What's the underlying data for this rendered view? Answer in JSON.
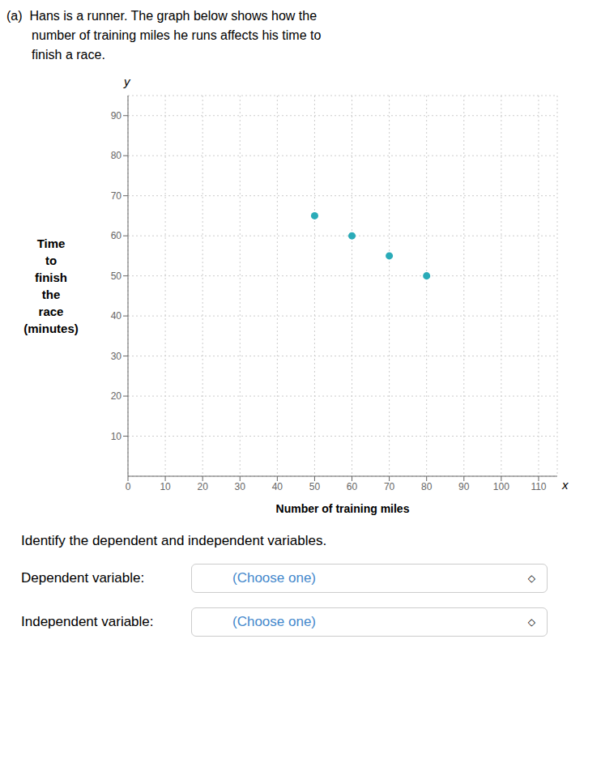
{
  "chart_data": {
    "type": "scatter",
    "title": "(a)  Hans is a runner. The graph below shows how the\n       number of training miles he runs affects his time to\n       finish a race.",
    "x_label": "Number of training miles",
    "y_label": "Time\nto\nfinish\nthe\nrace\n(minutes)",
    "x": [
      50,
      60,
      70,
      80
    ],
    "values": [
      65,
      60,
      55,
      50
    ],
    "color": "#2aabb8",
    "xlim": [
      0,
      115
    ],
    "ylim": [
      0,
      95
    ],
    "xticks": [
      0,
      10,
      20,
      30,
      40,
      50,
      60,
      70,
      80,
      90,
      100,
      110
    ],
    "yticks": [
      10,
      20,
      30,
      40,
      50,
      60,
      70,
      80,
      90
    ],
    "grid": true,
    "annotations": [
      {
        "text": "y"
      },
      {
        "text": "x"
      },
      {
        "text": "Identify the dependent and independent variables."
      },
      {
        "text": "Dependent variable:"
      },
      {
        "text": "(Choose one)",
        "color": "#4488cc"
      },
      {
        "text": "◇"
      },
      {
        "text": "Independent variable:"
      },
      {
        "text": "(Choose one)",
        "color": "#4488cc"
      },
      {
        "text": "◇"
      }
    ]
  }
}
